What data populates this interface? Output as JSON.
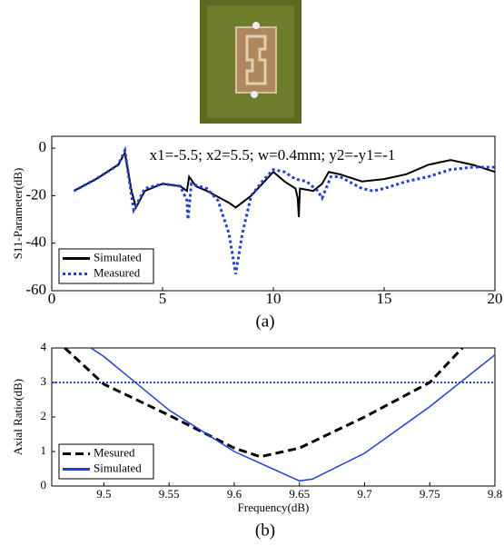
{
  "chart_data": [
    {
      "type": "line",
      "annotation": "x1=-5.5; x2=5.5; w=0.4mm; y2=-y1=-1",
      "ylabel": "S11-Parameter(dB)",
      "caption": "(a)",
      "xlim": [
        0,
        20
      ],
      "xticks": [
        0,
        5,
        10,
        15,
        20
      ],
      "ylim": [
        -60,
        5
      ],
      "yticks": [
        -60,
        -40,
        -20,
        0
      ],
      "legend": "lower-left",
      "series": [
        {
          "name": "Simulated",
          "color": "#000000",
          "linestyle": "solid",
          "x": [
            1,
            2,
            3,
            3.3,
            3.6,
            3.8,
            4.2,
            5,
            5.8,
            6.1,
            6.2,
            6.5,
            7,
            8,
            8.3,
            9,
            9.5,
            10,
            10.5,
            11,
            11.1,
            11.15,
            11.2,
            11.8,
            12.2,
            12.5,
            13,
            14,
            15,
            16,
            17,
            18,
            19,
            20
          ],
          "values": [
            -18,
            -13,
            -7,
            -2,
            -18,
            -25,
            -18,
            -15,
            -16,
            -18,
            -12,
            -16,
            -18,
            -23,
            -25,
            -20,
            -15,
            -10,
            -14,
            -17,
            -21,
            -29,
            -17,
            -18,
            -15,
            -10,
            -11,
            -14,
            -13,
            -11,
            -7,
            -5,
            -7,
            -10
          ]
        },
        {
          "name": "Measured",
          "color": "#1f3fe0",
          "linestyle": "dotted",
          "x": [
            1,
            2,
            3,
            3.3,
            3.6,
            3.7,
            4.2,
            5,
            5.8,
            6.1,
            6.15,
            6.3,
            7,
            7.5,
            8,
            8.3,
            8.6,
            9,
            9.5,
            10,
            10.5,
            11,
            11.5,
            12,
            12.2,
            12.6,
            13,
            14,
            14.5,
            15,
            16,
            17,
            18,
            19,
            20
          ],
          "values": [
            -18,
            -13,
            -7,
            -1,
            -20,
            -26,
            -17,
            -15,
            -16,
            -22,
            -30,
            -15,
            -17,
            -22,
            -36,
            -53,
            -36,
            -20,
            -14,
            -9,
            -10,
            -13,
            -14,
            -18,
            -21,
            -12,
            -12,
            -17,
            -18,
            -17,
            -14,
            -12,
            -9,
            -8,
            -8
          ]
        }
      ]
    },
    {
      "type": "line",
      "xlabel": "Frequency(dB)",
      "ylabel": "Axial Ratio(dB)",
      "caption": "(b)",
      "xlim": [
        9.46,
        9.8
      ],
      "xticks": [
        9.5,
        9.55,
        9.6,
        9.65,
        9.7,
        9.75,
        9.8
      ],
      "ylim": [
        0,
        4
      ],
      "yticks": [
        0,
        1,
        2,
        3,
        4
      ],
      "legend": "lower-left",
      "hline": 3,
      "hline_color": "#1f3fe0",
      "series": [
        {
          "name": "Mesured",
          "color": "#000000",
          "linestyle": "dashed",
          "x": [
            9.47,
            9.5,
            9.55,
            9.6,
            9.62,
            9.65,
            9.7,
            9.75,
            9.775
          ],
          "values": [
            4,
            2.95,
            2.05,
            1.1,
            0.85,
            1.1,
            2.0,
            3.0,
            4
          ]
        },
        {
          "name": "Simulated",
          "color": "#1f3fe0",
          "linestyle": "solid",
          "x": [
            9.49,
            9.5,
            9.55,
            9.6,
            9.65,
            9.66,
            9.7,
            9.75,
            9.8
          ],
          "values": [
            4,
            3.75,
            2.2,
            1.0,
            0.15,
            0.2,
            0.95,
            2.3,
            3.8
          ]
        }
      ]
    }
  ]
}
